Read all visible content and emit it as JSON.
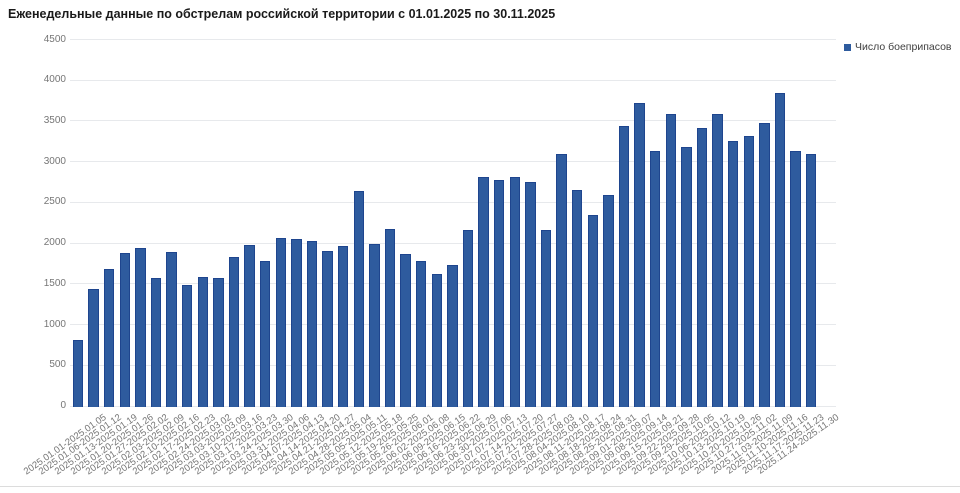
{
  "header": {
    "title": "Еженедельные данные по обстрелам российской территории с 01.01.2025 по 30.11.2025"
  },
  "legend": {
    "label": "Число боеприпасов"
  },
  "colors": {
    "bar_fill": "#2e5b9e",
    "bar_border": "#1e458e",
    "gridline": "#e7e9ec",
    "axis_text": "#767676",
    "title_text": "#1a1a1a",
    "legend_text": "#404040",
    "divider": "#dcdcdc",
    "background": "#ffffff"
  },
  "chart_data": {
    "type": "bar",
    "title": "Еженедельные данные по обстрелам российской территории с 01.01.2025 по 30.11.2025",
    "xlabel": "",
    "ylabel": "",
    "ylim": [
      0,
      4500
    ],
    "yticks": [
      0,
      500,
      1000,
      1500,
      2000,
      2500,
      3000,
      3500,
      4000,
      4500
    ],
    "grid": true,
    "legend_position": "top-right",
    "legend_entries": [
      "Число боеприпасов"
    ],
    "categories": [
      "2025.01.01-2025.01.05",
      "2025.01.06-2025.01.12",
      "2025.01.13-2025.01.19",
      "2025.01.20-2025.01.26",
      "2025.01.27-2025.02.02",
      "2025.02.03-2025.02.09",
      "2025.02.10-2025.02.16",
      "2025.02.17-2025.02.23",
      "2025.02.24-2025.03.02",
      "2025.03.03-2025.03.09",
      "2025.03.10-2025.03.16",
      "2025.03.17-2025.03.23",
      "2025.03.24-2025.03.30",
      "2025.03.31-2025.04.06",
      "2025.04.07-2025.04.13",
      "2025.04.14-2025.04.20",
      "2025.04.21-2025.04.27",
      "2025.04.28-2025.05.04",
      "2025.05.05-2025.05.11",
      "2025.05.12-2025.05.18",
      "2025.05.19-2025.05.25",
      "2025.05.26-2025.06.01",
      "2025.06.02-2025.06.08",
      "2025.06.09-2025.06.15",
      "2025.06.16-2025.06.22",
      "2025.06.23-2025.06.29",
      "2025.06.30-2025.07.06",
      "2025.07.07-2025.07.13",
      "2025.07.14-2025.07.20",
      "2025.07.21-2025.07.27",
      "2025.07.28-2025.08.03",
      "2025.08.04-2025.08.10",
      "2025.08.11-2025.08.17",
      "2025.08.18-2025.08.24",
      "2025.08.25-2025.08.31",
      "2025.09.01-2025.09.07",
      "2025.09.08-2025.09.14",
      "2025.09.15-2025.09.21",
      "2025.09.22-2025.09.28",
      "2025.09.29-2025.10.05",
      "2025.10.06-2025.10.12",
      "2025.10.13-2025.10.19",
      "2025.10.20-2025.10.26",
      "2025.10.27-2025.11.02",
      "2025.11.03-2025.11.09",
      "2025.11.10-2025.11.16",
      "2025.11.17-2025.11.23",
      "2025.11.24-2025.11.30"
    ],
    "series": [
      {
        "name": "Число боеприпасов",
        "color": "#2e5b9e",
        "values": [
          800,
          1430,
          1670,
          1870,
          1930,
          1560,
          1890,
          1480,
          1580,
          1560,
          1820,
          1970,
          1770,
          2060,
          2050,
          2020,
          1900,
          1960,
          2630,
          1980,
          2170,
          1860,
          1780,
          1610,
          1720,
          2150,
          2800,
          2770,
          2800,
          2740,
          2160,
          3090,
          2640,
          2340,
          2580,
          3430,
          3720,
          3120,
          3580,
          3170,
          3410,
          3580,
          3250,
          3310,
          3470,
          3840,
          3130,
          3090
        ]
      }
    ]
  }
}
